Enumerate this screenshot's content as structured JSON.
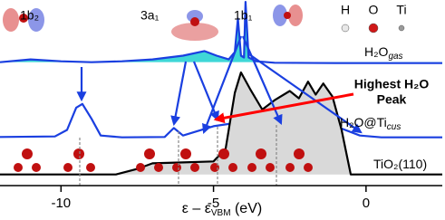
{
  "chart_data": {
    "type": "line",
    "xlabel": "ε – ε",
    "xlabel_sub": "VBM",
    "xlabel_unit": " (eV)",
    "xlim": [
      -12,
      2.5
    ],
    "xticks": [
      -10,
      -5,
      0
    ],
    "ylim": [
      0,
      10
    ],
    "series": [
      {
        "name": "H₂O",
        "name_sub": "gas",
        "color": "#1a3fe0",
        "fill": "#3fd7d7",
        "x": [
          -12,
          -11,
          -10,
          -9,
          -8,
          -7,
          -6,
          -5.3,
          -4.9,
          -4.5,
          -4.3,
          -4.2,
          -4.1,
          -4.0,
          -3.95,
          -3.85,
          -3.6,
          -3,
          -1,
          2.5
        ],
        "values": [
          6.65,
          6.8,
          6.7,
          6.65,
          6.7,
          6.8,
          7.0,
          7.25,
          7.0,
          6.8,
          7.2,
          9.0,
          7.0,
          6.9,
          9.9,
          6.9,
          6.7,
          6.62,
          6.6,
          6.6
        ]
      },
      {
        "name": "H₂O@Ti",
        "name_sub": "cus",
        "color": "#1a3fe0",
        "x": [
          -12,
          -10.2,
          -9.8,
          -9.5,
          -9.3,
          -9.0,
          -8.7,
          -8,
          -6.6,
          -6.3,
          -6.0,
          -5.6,
          -5.0,
          -4.0,
          -3.0,
          -2.0,
          -1.0,
          -0.2,
          0.5,
          2.5
        ],
        "values": [
          2.62,
          2.65,
          3.0,
          4.2,
          4.4,
          3.6,
          2.7,
          2.6,
          2.62,
          3.1,
          2.7,
          2.9,
          3.2,
          3.45,
          3.55,
          3.5,
          3.2,
          2.7,
          2.6,
          2.6
        ]
      },
      {
        "name": "TiO₂(110)",
        "color": "#000000",
        "fill": "#d9d9d9",
        "x": [
          -12,
          -8.2,
          -7.5,
          -7.0,
          -6.0,
          -5.0,
          -4.6,
          -4.3,
          -4.1,
          -3.8,
          -3.4,
          -3.0,
          -2.5,
          -2.2,
          -1.9,
          -1.65,
          -1.4,
          -1.1,
          -0.8,
          -0.5,
          2.5
        ],
        "values": [
          0.6,
          0.6,
          0.9,
          1.2,
          1.25,
          1.3,
          2.0,
          5.0,
          6.1,
          5.2,
          4.1,
          4.6,
          5.1,
          4.7,
          5.6,
          4.9,
          5.5,
          4.8,
          3.0,
          0.6,
          0.6
        ]
      }
    ],
    "orbitals": [
      "1b₂",
      "3a₁",
      "1b₁"
    ],
    "atom_legend": [
      {
        "name": "H",
        "color": "#e8e8e8"
      },
      {
        "name": "O",
        "color": "#d01818"
      },
      {
        "name": "Ti",
        "color": "#9a9a9a"
      }
    ],
    "annotation": [
      "Highest H₂O",
      "Peak"
    ],
    "annotation_color": "#ff0000"
  }
}
